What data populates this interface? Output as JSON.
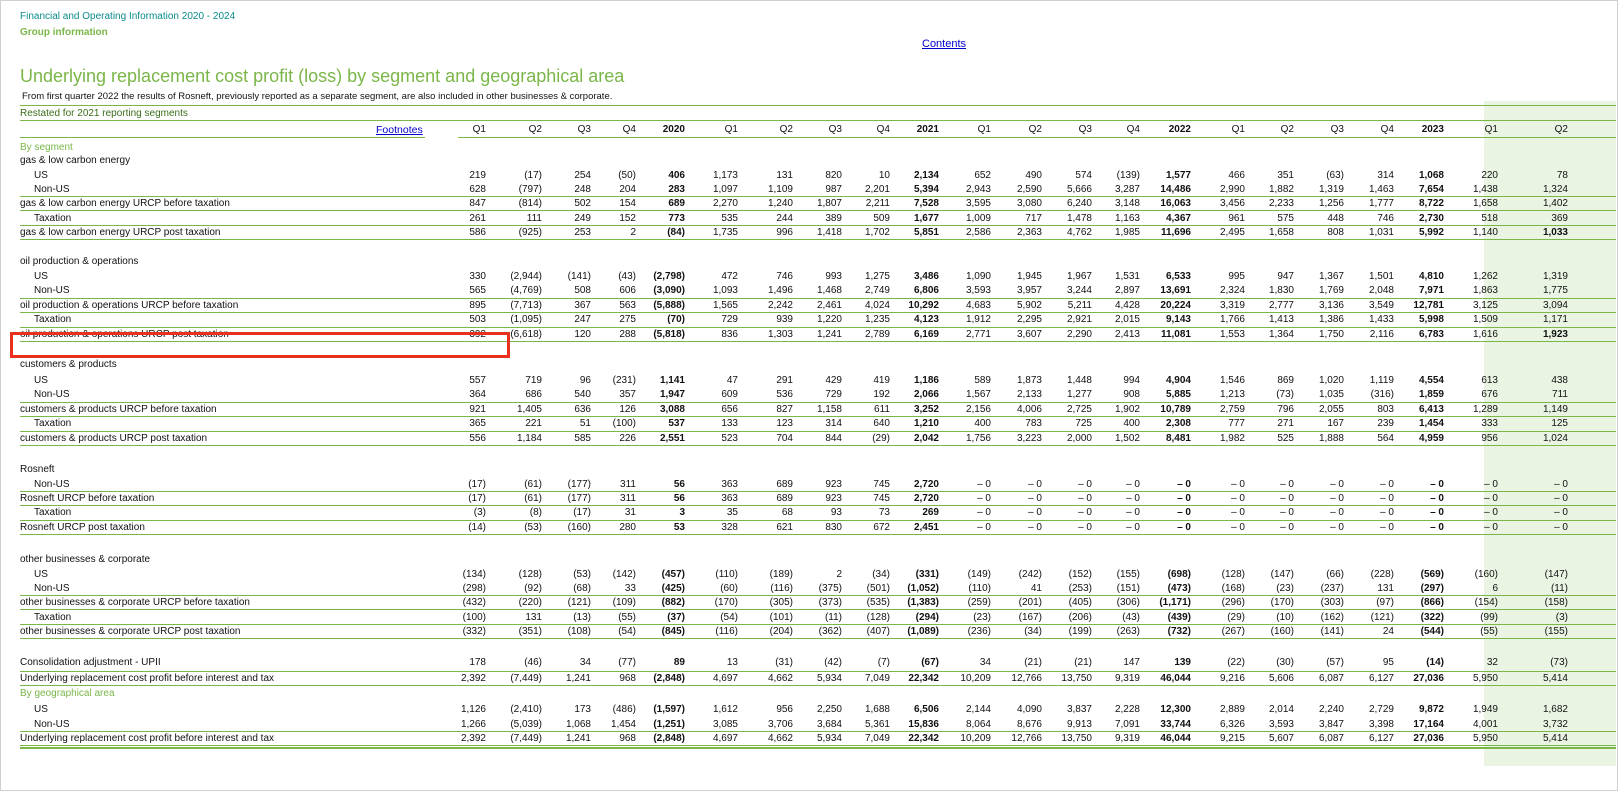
{
  "header": {
    "doc_title": "Financial and Operating Information 2020 - 2024",
    "section": "Group information",
    "contents_link": "Contents",
    "title": "Underlying replacement cost profit (loss) by segment and geographical area",
    "note": "From first quarter 2022 the results of Rosneft, previously reported as a separate segment, are also included in other businesses & corporate.",
    "restated": "Restated for 2021 reporting segments",
    "footnotes_link": "Footnotes"
  },
  "columns": [
    {
      "label": "Q1",
      "bold": false
    },
    {
      "label": "Q2",
      "bold": false
    },
    {
      "label": "Q3",
      "bold": false
    },
    {
      "label": "Q4",
      "bold": false
    },
    {
      "label": "2020",
      "bold": true
    },
    {
      "label": "Q1",
      "bold": false
    },
    {
      "label": "Q2",
      "bold": false
    },
    {
      "label": "Q3",
      "bold": false
    },
    {
      "label": "Q4",
      "bold": false
    },
    {
      "label": "2021",
      "bold": true
    },
    {
      "label": "Q1",
      "bold": false
    },
    {
      "label": "Q2",
      "bold": false
    },
    {
      "label": "Q3",
      "bold": false
    },
    {
      "label": "Q4",
      "bold": false
    },
    {
      "label": "2022",
      "bold": true
    },
    {
      "label": "Q1",
      "bold": false
    },
    {
      "label": "Q2",
      "bold": false
    },
    {
      "label": "Q3",
      "bold": false
    },
    {
      "label": "Q4",
      "bold": false
    },
    {
      "label": "2023",
      "bold": true
    },
    {
      "label": "Q1",
      "bold": false
    },
    {
      "label": "Q2",
      "bold": false
    }
  ],
  "rows": [
    {
      "kind": "section",
      "label": "By segment",
      "y": 140
    },
    {
      "kind": "group",
      "label": "gas & low carbon energy",
      "y": 153
    },
    {
      "kind": "data",
      "label": "US",
      "indent": true,
      "y": 168,
      "values": [
        "219",
        "(17)",
        "254",
        "(50)",
        "406",
        "1,173",
        "131",
        "820",
        "10",
        "2,134",
        "652",
        "490",
        "574",
        "(139)",
        "1,577",
        "466",
        "351",
        "(63)",
        "314",
        "1,068",
        "220",
        "78"
      ]
    },
    {
      "kind": "data",
      "label": "Non-US",
      "indent": true,
      "y": 182,
      "values": [
        "628",
        "(797)",
        "248",
        "204",
        "283",
        "1,097",
        "1,109",
        "987",
        "2,201",
        "5,394",
        "2,943",
        "2,590",
        "5,666",
        "3,287",
        "14,486",
        "2,990",
        "1,882",
        "1,319",
        "1,463",
        "7,654",
        "1,438",
        "1,324"
      ]
    },
    {
      "kind": "data",
      "label": "gas & low carbon energy URCP before taxation",
      "y": 196,
      "line": "t",
      "values": [
        "847",
        "(814)",
        "502",
        "154",
        "689",
        "2,270",
        "1,240",
        "1,807",
        "2,211",
        "7,528",
        "3,595",
        "3,080",
        "6,240",
        "3,148",
        "16,063",
        "3,456",
        "2,233",
        "1,256",
        "1,777",
        "8,722",
        "1,658",
        "1,402"
      ]
    },
    {
      "kind": "data",
      "label": "Taxation",
      "indent": true,
      "y": 211,
      "values": [
        "261",
        "111",
        "249",
        "152",
        "773",
        "535",
        "244",
        "389",
        "509",
        "1,677",
        "1,009",
        "717",
        "1,478",
        "1,163",
        "4,367",
        "961",
        "575",
        "448",
        "746",
        "2,730",
        "518",
        "369"
      ]
    },
    {
      "kind": "data",
      "label": "gas & low carbon energy URCP post taxation",
      "y": 225,
      "line": "t",
      "values": [
        "586",
        "(925)",
        "253",
        "2",
        "(84)",
        "1,735",
        "996",
        "1,418",
        "1,702",
        "5,851",
        "2,586",
        "2,363",
        "4,762",
        "1,985",
        "11,696",
        "2,495",
        "1,658",
        "808",
        "1,031",
        "5,992",
        "1,140",
        "1,033"
      ],
      "boldlast": true
    },
    {
      "kind": "group",
      "label": "oil production & operations",
      "y": 254
    },
    {
      "kind": "data",
      "label": "US",
      "indent": true,
      "y": 269,
      "values": [
        "330",
        "(2,944)",
        "(141)",
        "(43)",
        "(2,798)",
        "472",
        "746",
        "993",
        "1,275",
        "3,486",
        "1,090",
        "1,945",
        "1,967",
        "1,531",
        "6,533",
        "995",
        "947",
        "1,367",
        "1,501",
        "4,810",
        "1,262",
        "1,319"
      ]
    },
    {
      "kind": "data",
      "label": "Non-US",
      "indent": true,
      "y": 283,
      "values": [
        "565",
        "(4,769)",
        "508",
        "606",
        "(3,090)",
        "1,093",
        "1,496",
        "1,468",
        "2,749",
        "6,806",
        "3,593",
        "3,957",
        "3,244",
        "2,897",
        "13,691",
        "2,324",
        "1,830",
        "1,769",
        "2,048",
        "7,971",
        "1,863",
        "1,775"
      ]
    },
    {
      "kind": "data",
      "label": "oil production & operations URCP before taxation",
      "y": 298,
      "line": "t",
      "values": [
        "895",
        "(7,713)",
        "367",
        "563",
        "(5,888)",
        "1,565",
        "2,242",
        "2,461",
        "4,024",
        "10,292",
        "4,683",
        "5,902",
        "5,211",
        "4,428",
        "20,224",
        "3,319",
        "2,777",
        "3,136",
        "3,549",
        "12,781",
        "3,125",
        "3,094"
      ]
    },
    {
      "kind": "data",
      "label": "Taxation",
      "indent": true,
      "y": 312,
      "values": [
        "503",
        "(1,095)",
        "247",
        "275",
        "(70)",
        "729",
        "939",
        "1,220",
        "1,235",
        "4,123",
        "1,912",
        "2,295",
        "2,921",
        "2,015",
        "9,143",
        "1,766",
        "1,413",
        "1,386",
        "1,433",
        "5,998",
        "1,509",
        "1,171"
      ]
    },
    {
      "kind": "data",
      "label": "oil production & operations URCP post taxation",
      "y": 327,
      "line": "t",
      "values": [
        "392",
        "(6,618)",
        "120",
        "288",
        "(5,818)",
        "836",
        "1,303",
        "1,241",
        "2,789",
        "6,169",
        "2,771",
        "3,607",
        "2,290",
        "2,413",
        "11,081",
        "1,553",
        "1,364",
        "1,750",
        "2,116",
        "6,783",
        "1,616",
        "1,923"
      ],
      "boldlast": true
    },
    {
      "kind": "group",
      "label": "customers & products",
      "y": 357
    },
    {
      "kind": "data",
      "label": "US",
      "indent": true,
      "y": 373,
      "values": [
        "557",
        "719",
        "96",
        "(231)",
        "1,141",
        "47",
        "291",
        "429",
        "419",
        "1,186",
        "589",
        "1,873",
        "1,448",
        "994",
        "4,904",
        "1,546",
        "869",
        "1,020",
        "1,119",
        "4,554",
        "613",
        "438"
      ]
    },
    {
      "kind": "data",
      "label": "Non-US",
      "indent": true,
      "y": 387,
      "values": [
        "364",
        "686",
        "540",
        "357",
        "1,947",
        "609",
        "536",
        "729",
        "192",
        "2,066",
        "1,567",
        "2,133",
        "1,277",
        "908",
        "5,885",
        "1,213",
        "(73)",
        "1,035",
        "(316)",
        "1,859",
        "676",
        "711"
      ]
    },
    {
      "kind": "data",
      "label": "customers & products URCP before taxation",
      "y": 402,
      "line": "t",
      "values": [
        "921",
        "1,405",
        "636",
        "126",
        "3,088",
        "656",
        "827",
        "1,158",
        "611",
        "3,252",
        "2,156",
        "4,006",
        "2,725",
        "1,902",
        "10,789",
        "2,759",
        "796",
        "2,055",
        "803",
        "6,413",
        "1,289",
        "1,149"
      ]
    },
    {
      "kind": "data",
      "label": "Taxation",
      "indent": true,
      "y": 416,
      "values": [
        "365",
        "221",
        "51",
        "(100)",
        "537",
        "133",
        "123",
        "314",
        "640",
        "1,210",
        "400",
        "783",
        "725",
        "400",
        "2,308",
        "777",
        "271",
        "167",
        "239",
        "1,454",
        "333",
        "125"
      ]
    },
    {
      "kind": "data",
      "label": "customers & products URCP post taxation",
      "y": 431,
      "line": "t",
      "values": [
        "556",
        "1,184",
        "585",
        "226",
        "2,551",
        "523",
        "704",
        "844",
        "(29)",
        "2,042",
        "1,756",
        "3,223",
        "2,000",
        "1,502",
        "8,481",
        "1,982",
        "525",
        "1,888",
        "564",
        "4,959",
        "956",
        "1,024"
      ]
    },
    {
      "kind": "group",
      "label": "Rosneft",
      "y": 462
    },
    {
      "kind": "data",
      "label": "Non-US",
      "indent": true,
      "y": 477,
      "values": [
        "(17)",
        "(61)",
        "(177)",
        "311",
        "56",
        "363",
        "689",
        "923",
        "745",
        "2,720",
        "– 0",
        "– 0",
        "– 0",
        "– 0",
        "– 0",
        "– 0",
        "– 0",
        "– 0",
        "– 0",
        "– 0",
        "– 0",
        "– 0"
      ]
    },
    {
      "kind": "data",
      "label": "Rosneft URCP before taxation",
      "y": 491,
      "line": "t",
      "values": [
        "(17)",
        "(61)",
        "(177)",
        "311",
        "56",
        "363",
        "689",
        "923",
        "745",
        "2,720",
        "– 0",
        "– 0",
        "– 0",
        "– 0",
        "– 0",
        "– 0",
        "– 0",
        "– 0",
        "– 0",
        "– 0",
        "– 0",
        "– 0"
      ]
    },
    {
      "kind": "data",
      "label": "Taxation",
      "indent": true,
      "y": 505,
      "values": [
        "(3)",
        "(8)",
        "(17)",
        "31",
        "3",
        "35",
        "68",
        "93",
        "73",
        "269",
        "– 0",
        "– 0",
        "– 0",
        "– 0",
        "– 0",
        "– 0",
        "– 0",
        "– 0",
        "– 0",
        "– 0",
        "– 0",
        "– 0"
      ]
    },
    {
      "kind": "data",
      "label": "Rosneft URCP post taxation",
      "y": 520,
      "line": "t",
      "values": [
        "(14)",
        "(53)",
        "(160)",
        "280",
        "53",
        "328",
        "621",
        "830",
        "672",
        "2,451",
        "– 0",
        "– 0",
        "– 0",
        "– 0",
        "– 0",
        "– 0",
        "– 0",
        "– 0",
        "– 0",
        "– 0",
        "– 0",
        "– 0"
      ]
    },
    {
      "kind": "group",
      "label": "other businesses & corporate",
      "y": 552
    },
    {
      "kind": "data",
      "label": "US",
      "indent": true,
      "y": 567,
      "values": [
        "(134)",
        "(128)",
        "(53)",
        "(142)",
        "(457)",
        "(110)",
        "(189)",
        "2",
        "(34)",
        "(331)",
        "(149)",
        "(242)",
        "(152)",
        "(155)",
        "(698)",
        "(128)",
        "(147)",
        "(66)",
        "(228)",
        "(569)",
        "(160)",
        "(147)"
      ]
    },
    {
      "kind": "data",
      "label": "Non-US",
      "indent": true,
      "y": 581,
      "values": [
        "(298)",
        "(92)",
        "(68)",
        "33",
        "(425)",
        "(60)",
        "(116)",
        "(375)",
        "(501)",
        "(1,052)",
        "(110)",
        "41",
        "(253)",
        "(151)",
        "(473)",
        "(168)",
        "(23)",
        "(237)",
        "131",
        "(297)",
        "6",
        "(11)"
      ]
    },
    {
      "kind": "data",
      "label": "other businesses & corporate URCP before taxation",
      "y": 595,
      "line": "t",
      "values": [
        "(432)",
        "(220)",
        "(121)",
        "(109)",
        "(882)",
        "(170)",
        "(305)",
        "(373)",
        "(535)",
        "(1,383)",
        "(259)",
        "(201)",
        "(405)",
        "(306)",
        "(1,171)",
        "(296)",
        "(170)",
        "(303)",
        "(97)",
        "(866)",
        "(154)",
        "(158)"
      ]
    },
    {
      "kind": "data",
      "label": "Taxation",
      "indent": true,
      "y": 610,
      "values": [
        "(100)",
        "131",
        "(13)",
        "(55)",
        "(37)",
        "(54)",
        "(101)",
        "(11)",
        "(128)",
        "(294)",
        "(23)",
        "(167)",
        "(206)",
        "(43)",
        "(439)",
        "(29)",
        "(10)",
        "(162)",
        "(121)",
        "(322)",
        "(99)",
        "(3)"
      ]
    },
    {
      "kind": "data",
      "label": "other businesses & corporate URCP post taxation",
      "y": 624,
      "line": "t",
      "values": [
        "(332)",
        "(351)",
        "(108)",
        "(54)",
        "(845)",
        "(116)",
        "(204)",
        "(362)",
        "(407)",
        "(1,089)",
        "(236)",
        "(34)",
        "(199)",
        "(263)",
        "(732)",
        "(267)",
        "(160)",
        "(141)",
        "24",
        "(544)",
        "(55)",
        "(155)"
      ]
    },
    {
      "kind": "data",
      "label": "Consolidation adjustment - UPII",
      "y": 655,
      "values": [
        "178",
        "(46)",
        "34",
        "(77)",
        "89",
        "13",
        "(31)",
        "(42)",
        "(7)",
        "(67)",
        "34",
        "(21)",
        "(21)",
        "147",
        "139",
        "(22)",
        "(30)",
        "(57)",
        "95",
        "(14)",
        "32",
        "(73)"
      ]
    },
    {
      "kind": "data",
      "label": "Underlying replacement cost profit before interest and tax",
      "y": 671,
      "line": "t",
      "values": [
        "2,392",
        "(7,449)",
        "1,241",
        "968",
        "(2,848)",
        "4,697",
        "4,662",
        "5,934",
        "7,049",
        "22,342",
        "10,209",
        "12,766",
        "13,750",
        "9,319",
        "46,044",
        "9,216",
        "5,606",
        "6,087",
        "6,127",
        "27,036",
        "5,950",
        "5,414"
      ]
    },
    {
      "kind": "section",
      "label": "By geographical area",
      "y": 686
    },
    {
      "kind": "data",
      "label": "US",
      "indent": true,
      "y": 702,
      "values": [
        "1,126",
        "(2,410)",
        "173",
        "(486)",
        "(1,597)",
        "1,612",
        "956",
        "2,250",
        "1,688",
        "6,506",
        "2,144",
        "4,090",
        "3,837",
        "2,228",
        "12,300",
        "2,889",
        "2,014",
        "2,240",
        "2,729",
        "9,872",
        "1,949",
        "1,682"
      ]
    },
    {
      "kind": "data",
      "label": "Non-US",
      "indent": true,
      "y": 717,
      "values": [
        "1,266",
        "(5,039)",
        "1,068",
        "1,454",
        "(1,251)",
        "3,085",
        "3,706",
        "3,684",
        "5,361",
        "15,836",
        "8,064",
        "8,676",
        "9,913",
        "7,091",
        "33,744",
        "6,326",
        "3,593",
        "3,847",
        "3,398",
        "17,164",
        "4,001",
        "3,732"
      ]
    },
    {
      "kind": "data",
      "label": "Underlying replacement cost profit before interest and tax",
      "y": 731,
      "line": "t",
      "total": true,
      "values": [
        "2,392",
        "(7,449)",
        "1,241",
        "968",
        "(2,848)",
        "4,697",
        "4,662",
        "5,934",
        "7,049",
        "22,342",
        "10,209",
        "12,766",
        "13,750",
        "9,319",
        "46,044",
        "9,215",
        "5,607",
        "6,087",
        "6,127",
        "27,036",
        "5,950",
        "5,414"
      ]
    }
  ]
}
